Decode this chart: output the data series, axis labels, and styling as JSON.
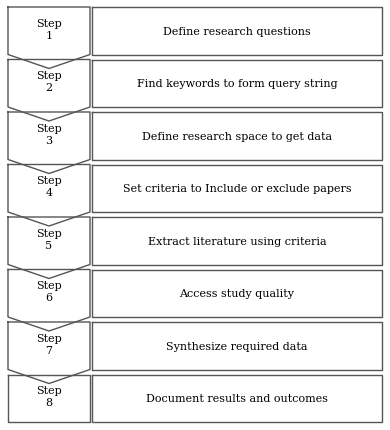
{
  "steps": [
    {
      "label": "Step\n1",
      "description": "Define research questions"
    },
    {
      "label": "Step\n2",
      "description": "Find keywords to form query string"
    },
    {
      "label": "Step\n3",
      "description": "Define research space to get data"
    },
    {
      "label": "Step\n4",
      "description": "Set criteria to Include or exclude papers"
    },
    {
      "label": "Step\n5",
      "description": "Extract literature using criteria"
    },
    {
      "label": "Step\n6",
      "description": "Access study quality"
    },
    {
      "label": "Step\n7",
      "description": "Synthesize required data"
    },
    {
      "label": "Step\n8",
      "description": "Document results and outcomes"
    }
  ],
  "bg_color": "#ffffff",
  "box_fill": "#ffffff",
  "box_edge": "#555555",
  "text_color": "#000000",
  "fig_width": 3.9,
  "fig_height": 4.31,
  "dpi": 100,
  "lw": 1.0,
  "font_size": 8.0
}
